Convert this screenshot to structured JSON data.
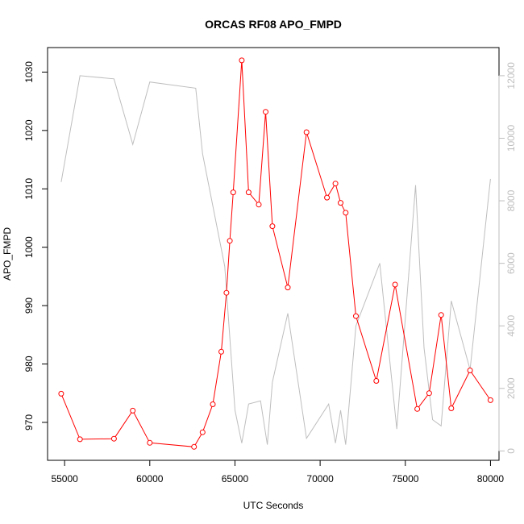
{
  "chart_data": {
    "type": "line",
    "title": "ORCAS RF08 APO_FMPD",
    "xlabel": "UTC Seconds",
    "ylabel": "APO_FMPD",
    "xlim": [
      54000,
      80500
    ],
    "ylim": [
      963.5,
      1034.2
    ],
    "y2lim": [
      -300,
      12900
    ],
    "x_ticks": [
      55000,
      60000,
      65000,
      70000,
      75000,
      80000
    ],
    "y_ticks": [
      970,
      980,
      990,
      1000,
      1010,
      1020,
      1030
    ],
    "y2_ticks": [
      0,
      2000,
      4000,
      6000,
      8000,
      10000,
      12000
    ],
    "grid": false,
    "colors": {
      "primary": "#ff0000",
      "secondary": "#bebebe"
    },
    "series": [
      {
        "axis": "left",
        "style": "line+points",
        "x": [
          54800,
          55900,
          57900,
          59000,
          60000,
          62600,
          63100,
          63700,
          64200,
          64500,
          64700,
          64900,
          65400,
          65800,
          66400,
          66800,
          67200,
          68100,
          69200,
          70400,
          70900,
          71200,
          71500,
          72100,
          73300,
          74400,
          75700,
          76400,
          77100,
          77700,
          78800,
          80000
        ],
        "y": [
          974.9,
          967.1,
          967.2,
          972.0,
          966.5,
          965.8,
          968.3,
          973.1,
          982.1,
          992.2,
          1001.1,
          1009.4,
          1032.0,
          1009.4,
          1007.3,
          1023.2,
          1003.6,
          993.1,
          1019.7,
          1008.5,
          1010.9,
          1007.6,
          1005.9,
          988.2,
          977.1,
          993.6,
          972.3,
          975.0,
          988.4,
          972.4,
          978.9,
          973.8
        ]
      },
      {
        "axis": "right",
        "style": "line",
        "x": [
          54800,
          55900,
          57900,
          59000,
          60000,
          62700,
          63100,
          64400,
          65000,
          65400,
          65800,
          66500,
          66900,
          67200,
          68100,
          69200,
          70500,
          70900,
          71200,
          71500,
          72100,
          73500,
          74500,
          75600,
          76100,
          76600,
          77100,
          77700,
          78800,
          80000
        ],
        "y": [
          8600,
          12000,
          11900,
          9800,
          11800,
          11600,
          9500,
          5900,
          1300,
          250,
          1500,
          1600,
          200,
          2200,
          4400,
          400,
          1500,
          250,
          1300,
          200,
          4000,
          6000,
          700,
          8500,
          3300,
          1000,
          800,
          4800,
          2600,
          8700
        ]
      }
    ]
  }
}
